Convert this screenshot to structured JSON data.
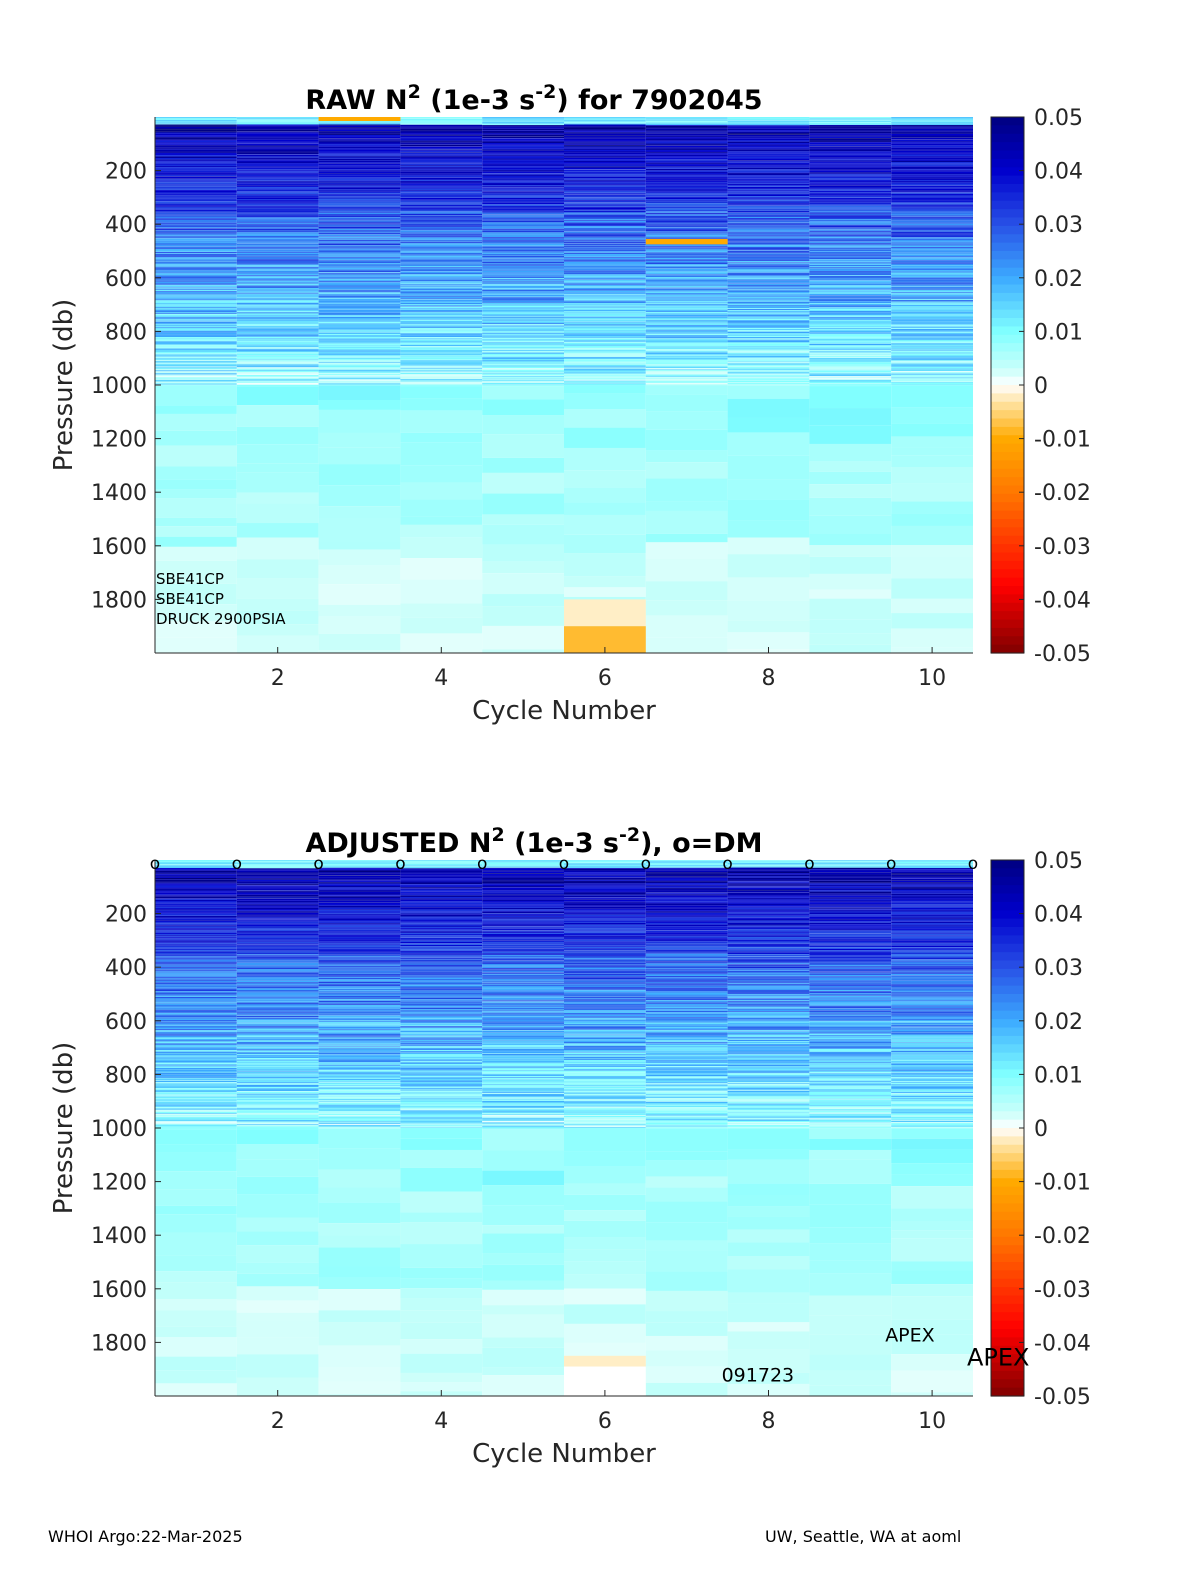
{
  "chart_data": [
    {
      "type": "heatmap",
      "title": "RAW N2 (1e-3 s-2) for 7902045",
      "title_parts": {
        "pre": "RAW N",
        "sup1": "2",
        "mid": " (1e-3 s",
        "sup2": "-2",
        "post": ") for 7902045"
      },
      "xlabel": "Cycle Number",
      "ylabel": "Pressure (db)",
      "x": [
        1,
        2,
        3,
        4,
        5,
        6,
        7,
        8,
        9,
        10
      ],
      "xlim": [
        0.5,
        10.5
      ],
      "ylim": [
        0,
        2000
      ],
      "y_reversed": true,
      "xticks": [
        2,
        4,
        6,
        8,
        10
      ],
      "yticks": [
        200,
        400,
        600,
        800,
        1000,
        1200,
        1400,
        1600,
        1800
      ],
      "clim": [
        -0.05,
        0.05
      ],
      "colorbar_ticks": [
        "0.05",
        "0.04",
        "0.03",
        "0.02",
        "0.01",
        "0",
        "-0.01",
        "-0.02",
        "-0.03",
        "-0.04",
        "-0.05"
      ],
      "colorbar_values": [
        0.05,
        0.04,
        0.03,
        0.02,
        0.01,
        0,
        -0.01,
        -0.02,
        -0.03,
        -0.04,
        -0.05
      ],
      "sensor_labels": [
        "SBE41CP",
        "SBE41CP",
        "DRUCK 2900PSIA"
      ],
      "annotations": [],
      "profile_summary": [
        {
          "p0": 0,
          "p1": 30,
          "n2": 0.012
        },
        {
          "p0": 30,
          "p1": 350,
          "n2": 0.045
        },
        {
          "p0": 350,
          "p1": 1000,
          "n2": 0.012
        },
        {
          "p0": 1000,
          "p1": 1200,
          "n2": 0.009
        },
        {
          "p0": 1200,
          "p1": 1600,
          "n2": 0.006
        },
        {
          "p0": 1600,
          "p1": 2000,
          "n2": 0.003
        }
      ],
      "special_cells": [
        {
          "cycle": 3,
          "p0": 0,
          "p1": 15,
          "n2": -0.01
        },
        {
          "cycle": 6,
          "p0": 1800,
          "p1": 1900,
          "n2": -0.002
        },
        {
          "cycle": 6,
          "p0": 1900,
          "p1": 2000,
          "n2": -0.008
        },
        {
          "cycle": 7,
          "p0": 455,
          "p1": 475,
          "n2": -0.01
        }
      ]
    },
    {
      "type": "heatmap",
      "title": "ADJUSTED N2 (1e-3 s-2), o=DM",
      "title_parts": {
        "pre": "ADJUSTED N",
        "sup1": "2",
        "mid": " (1e-3 s",
        "sup2": "-2",
        "post": "), o=DM"
      },
      "xlabel": "Cycle Number",
      "ylabel": "Pressure (db)",
      "x": [
        1,
        2,
        3,
        4,
        5,
        6,
        7,
        8,
        9,
        10
      ],
      "xlim": [
        0.5,
        10.5
      ],
      "ylim": [
        0,
        2000
      ],
      "y_reversed": true,
      "xticks": [
        2,
        4,
        6,
        8,
        10
      ],
      "yticks": [
        200,
        400,
        600,
        800,
        1000,
        1200,
        1400,
        1600,
        1800
      ],
      "clim": [
        -0.05,
        0.05
      ],
      "colorbar_ticks": [
        "0.05",
        "0.04",
        "0.03",
        "0.02",
        "0.01",
        "0",
        "-0.01",
        "-0.02",
        "-0.03",
        "-0.04",
        "-0.05"
      ],
      "colorbar_values": [
        0.05,
        0.04,
        0.03,
        0.02,
        0.01,
        0,
        -0.01,
        -0.02,
        -0.03,
        -0.04,
        -0.05
      ],
      "dm_markers": {
        "symbol": "o",
        "x": [
          0.5,
          1.5,
          2.5,
          3.5,
          4.5,
          5.5,
          6.5,
          7.5,
          8.5,
          9.5,
          10.5
        ]
      },
      "annotations": [
        {
          "text": "APEX",
          "x": 9.5,
          "y": 1770,
          "size": "small"
        },
        {
          "text": "APEX",
          "x": 10.5,
          "y": 1860,
          "size": "large"
        },
        {
          "text": "091723",
          "x": 7.5,
          "y": 1920,
          "size": "small"
        }
      ],
      "special_cells": [
        {
          "cycle": 6,
          "p0": 1890,
          "p1": 2000,
          "n2": null
        },
        {
          "cycle": 6,
          "p0": 1850,
          "p1": 1890,
          "n2": -0.002
        }
      ]
    }
  ],
  "footer": {
    "left": "WHOI Argo:22-Mar-2025",
    "right": "UW, Seattle, WA at aoml"
  }
}
